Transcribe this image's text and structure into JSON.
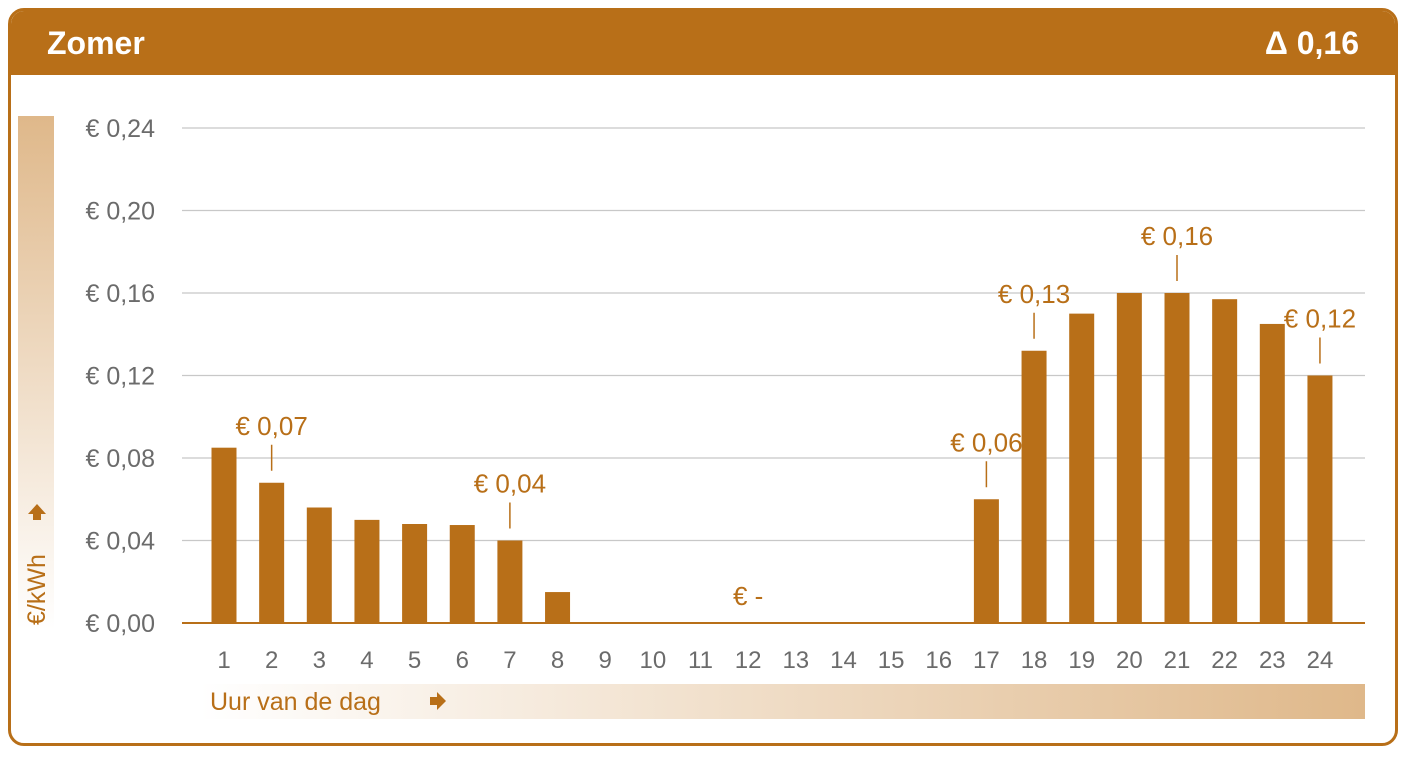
{
  "header": {
    "title": "Zomer",
    "delta": "Δ 0,16"
  },
  "chart_data": {
    "type": "bar",
    "title": "Zomer",
    "xlabel": "Uur van de dag",
    "ylabel": "€/kWh",
    "ylim": [
      0,
      0.24
    ],
    "grid": true,
    "colors": {
      "bar": "#b86f18",
      "grid": "#c8c8c8",
      "tick": "#6b6b6b",
      "label": "#b86f18"
    },
    "categories": [
      "1",
      "2",
      "3",
      "4",
      "5",
      "6",
      "7",
      "8",
      "9",
      "10",
      "11",
      "12",
      "13",
      "14",
      "15",
      "16",
      "17",
      "18",
      "19",
      "20",
      "21",
      "22",
      "23",
      "24"
    ],
    "values": [
      0.085,
      0.068,
      0.056,
      0.05,
      0.048,
      0.0475,
      0.04,
      0.015,
      0,
      0,
      0,
      0,
      0,
      0,
      0,
      0,
      0.06,
      0.132,
      0.15,
      0.16,
      0.16,
      0.157,
      0.145,
      0.12
    ],
    "yticks": [
      0,
      0.04,
      0.08,
      0.12,
      0.16,
      0.2,
      0.24
    ],
    "ytick_labels": [
      "€ 0,00",
      "€ 0,04",
      "€ 0,08",
      "€ 0,12",
      "€ 0,16",
      "€ 0,20",
      "€ 0,24"
    ],
    "annotations": [
      {
        "category": "2",
        "text": "€ 0,07"
      },
      {
        "category": "7",
        "text": "€ 0,04"
      },
      {
        "category": "12",
        "text": "€ -"
      },
      {
        "category": "17",
        "text": "€ 0,06"
      },
      {
        "category": "18",
        "text": "€ 0,13"
      },
      {
        "category": "21",
        "text": "€ 0,16"
      },
      {
        "category": "24",
        "text": "€ 0,12"
      }
    ]
  }
}
